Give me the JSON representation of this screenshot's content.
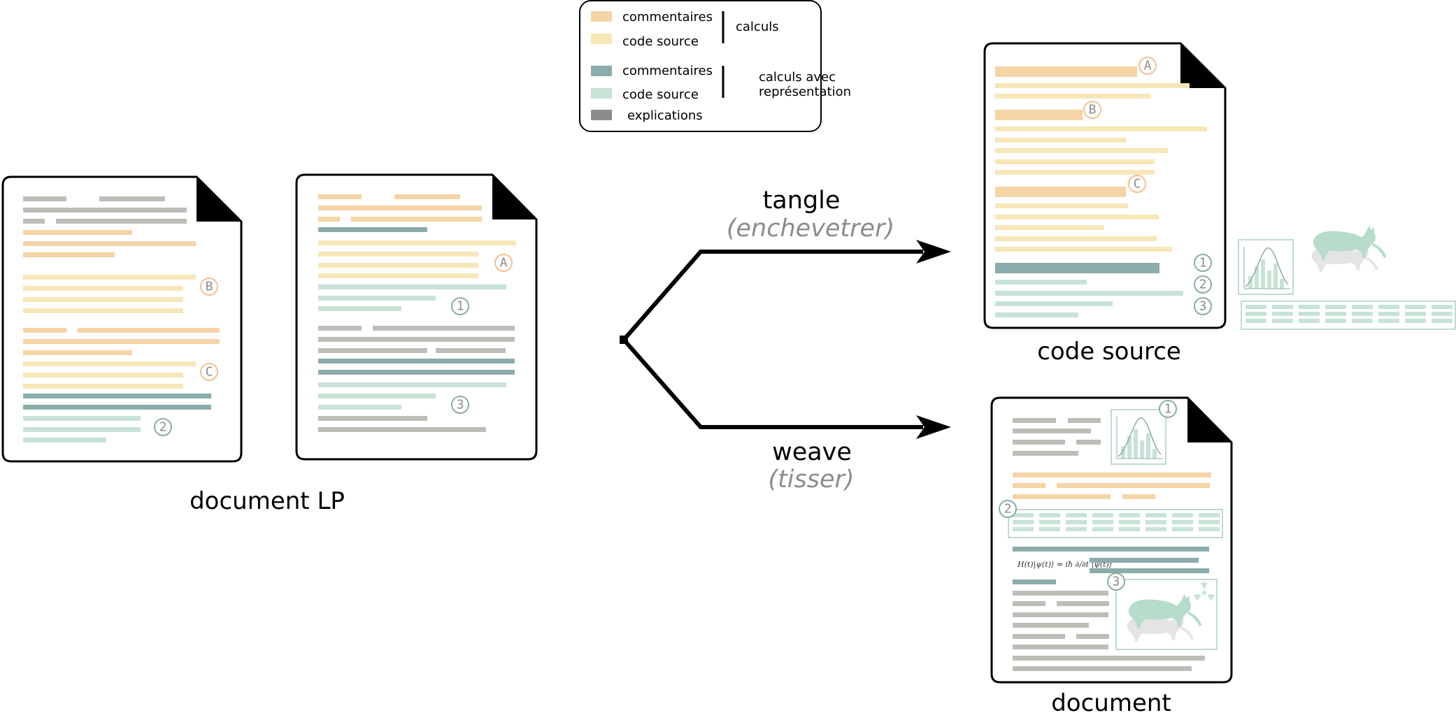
{
  "colors": {
    "comment_calc": "#f5d4a6",
    "source_calc": "#f7e6b8",
    "comment_repr": "#8aacaa",
    "source_repr": "#c7e3d6",
    "explanation": "#bdbdb8",
    "explanation_legend": "#8c8c8c",
    "marker_orange": "#f5c08e",
    "marker_teal": "#8aacaa",
    "frame_green": "#a9cfc0",
    "animal_green": "#b8dccb",
    "animal_gray": "#e4e4e4"
  },
  "legend": {
    "items": [
      {
        "label": "commentaires",
        "color": "#f5d4a6"
      },
      {
        "label": "code source",
        "color": "#f7e6b8"
      },
      {
        "label": "commentaires",
        "color": "#8aacaa"
      },
      {
        "label": "code source",
        "color": "#c7e3d6"
      },
      {
        "label": "explications",
        "color": "#8c8c8c"
      }
    ],
    "group_calc": "calculs",
    "group_repr_line1": "calculs avec",
    "group_repr_line2": "représentation"
  },
  "captions": {
    "lp": "document LP",
    "source": "code source",
    "document": "document"
  },
  "arrows": {
    "tangle": "tangle",
    "tangle_gloss": "(enchevetrer)",
    "weave": "weave",
    "weave_gloss": "(tisser)"
  },
  "markers": {
    "A": "A",
    "B": "B",
    "C": "C",
    "one": "1",
    "two": "2",
    "three": "3"
  },
  "formula": "H(t)|ψ(t)⟩ = iħ ∂/∂t |ψ(t)⟩"
}
